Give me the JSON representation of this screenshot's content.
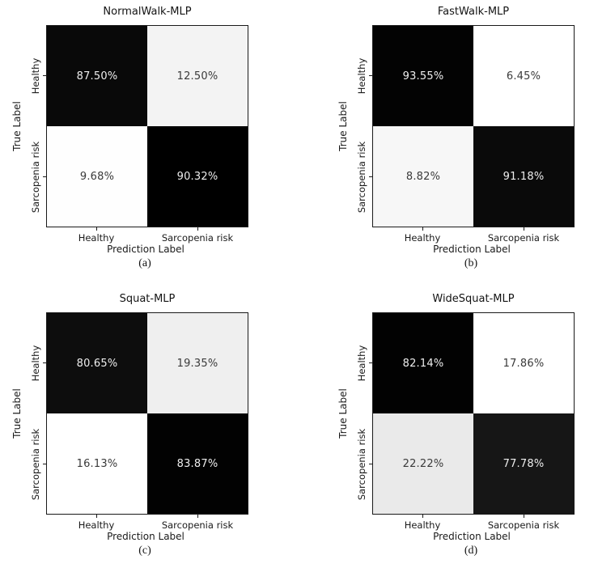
{
  "figure": {
    "background": "#ffffff"
  },
  "panels": [
    {
      "id": "a",
      "title": "NormalWalk-MLP",
      "caption": "(a)",
      "xlabel": "Prediction Label",
      "ylabel": "True Label",
      "x_tick_labels": [
        "Healthy",
        "Sarcopenia risk"
      ],
      "y_tick_labels": [
        "Healthy",
        "Sarcopenia risk"
      ],
      "cells": [
        {
          "true_label": "Healthy",
          "pred_label": "Healthy",
          "value": "87.50%",
          "bg": "#090909",
          "fg": "#eeeeee"
        },
        {
          "true_label": "Healthy",
          "pred_label": "Sarcopenia risk",
          "value": "12.50%",
          "bg": "#f3f3f3",
          "fg": "#3a3a3a"
        },
        {
          "true_label": "Sarcopenia risk",
          "pred_label": "Healthy",
          "value": "9.68%",
          "bg": "#fefefe",
          "fg": "#3a3a3a"
        },
        {
          "true_label": "Sarcopenia risk",
          "pred_label": "Sarcopenia risk",
          "value": "90.32%",
          "bg": "#000000",
          "fg": "#eeeeee"
        }
      ]
    },
    {
      "id": "b",
      "title": "FastWalk-MLP",
      "caption": "(b)",
      "xlabel": "Prediction Label",
      "ylabel": "True Label",
      "x_tick_labels": [
        "Healthy",
        "Sarcopenia risk"
      ],
      "y_tick_labels": [
        "Healthy",
        "Sarcopenia risk"
      ],
      "cells": [
        {
          "true_label": "Healthy",
          "pred_label": "Healthy",
          "value": "93.55%",
          "bg": "#030303",
          "fg": "#eeeeee"
        },
        {
          "true_label": "Healthy",
          "pred_label": "Sarcopenia risk",
          "value": "6.45%",
          "bg": "#ffffff",
          "fg": "#3a3a3a"
        },
        {
          "true_label": "Sarcopenia risk",
          "pred_label": "Healthy",
          "value": "8.82%",
          "bg": "#f7f7f7",
          "fg": "#3a3a3a"
        },
        {
          "true_label": "Sarcopenia risk",
          "pred_label": "Sarcopenia risk",
          "value": "91.18%",
          "bg": "#0a0a0a",
          "fg": "#eeeeee"
        }
      ]
    },
    {
      "id": "c",
      "title": "Squat-MLP",
      "caption": "(c)",
      "xlabel": "Prediction Label",
      "ylabel": "True Label",
      "x_tick_labels": [
        "Healthy",
        "Sarcopenia risk"
      ],
      "y_tick_labels": [
        "Healthy",
        "Sarcopenia risk"
      ],
      "cells": [
        {
          "true_label": "Healthy",
          "pred_label": "Healthy",
          "value": "80.65%",
          "bg": "#0d0d0d",
          "fg": "#eeeeee"
        },
        {
          "true_label": "Healthy",
          "pred_label": "Sarcopenia risk",
          "value": "19.35%",
          "bg": "#efefef",
          "fg": "#3a3a3a"
        },
        {
          "true_label": "Sarcopenia risk",
          "pred_label": "Healthy",
          "value": "16.13%",
          "bg": "#ffffff",
          "fg": "#3a3a3a"
        },
        {
          "true_label": "Sarcopenia risk",
          "pred_label": "Sarcopenia risk",
          "value": "83.87%",
          "bg": "#020202",
          "fg": "#eeeeee"
        }
      ]
    },
    {
      "id": "d",
      "title": "WideSquat-MLP",
      "caption": "(d)",
      "xlabel": "Prediction Label",
      "ylabel": "True Label",
      "x_tick_labels": [
        "Healthy",
        "Sarcopenia risk"
      ],
      "y_tick_labels": [
        "Healthy",
        "Sarcopenia risk"
      ],
      "cells": [
        {
          "true_label": "Healthy",
          "pred_label": "Healthy",
          "value": "82.14%",
          "bg": "#020202",
          "fg": "#eeeeee"
        },
        {
          "true_label": "Healthy",
          "pred_label": "Sarcopenia risk",
          "value": "17.86%",
          "bg": "#ffffff",
          "fg": "#3a3a3a"
        },
        {
          "true_label": "Sarcopenia risk",
          "pred_label": "Healthy",
          "value": "22.22%",
          "bg": "#eaeaea",
          "fg": "#3a3a3a"
        },
        {
          "true_label": "Sarcopenia risk",
          "pred_label": "Sarcopenia risk",
          "value": "77.78%",
          "bg": "#161616",
          "fg": "#eeeeee"
        }
      ]
    }
  ],
  "chart_data": [
    {
      "type": "heatmap",
      "title": "NormalWalk-MLP",
      "caption": "(a)",
      "xlabel": "Prediction Label",
      "ylabel": "True Label",
      "x_categories": [
        "Healthy",
        "Sarcopenia risk"
      ],
      "y_categories": [
        "Healthy",
        "Sarcopenia risk"
      ],
      "values_percent": [
        [
          87.5,
          12.5
        ],
        [
          9.68,
          90.32
        ]
      ],
      "colormap": "Greys: max value = black, min value = white",
      "legend": "none"
    },
    {
      "type": "heatmap",
      "title": "FastWalk-MLP",
      "caption": "(b)",
      "xlabel": "Prediction Label",
      "ylabel": "True Label",
      "x_categories": [
        "Healthy",
        "Sarcopenia risk"
      ],
      "y_categories": [
        "Healthy",
        "Sarcopenia risk"
      ],
      "values_percent": [
        [
          93.55,
          6.45
        ],
        [
          8.82,
          91.18
        ]
      ],
      "colormap": "Greys: max value = black, min value = white",
      "legend": "none"
    },
    {
      "type": "heatmap",
      "title": "Squat-MLP",
      "caption": "(c)",
      "xlabel": "Prediction Label",
      "ylabel": "True Label",
      "x_categories": [
        "Healthy",
        "Sarcopenia risk"
      ],
      "y_categories": [
        "Healthy",
        "Sarcopenia risk"
      ],
      "values_percent": [
        [
          80.65,
          19.35
        ],
        [
          16.13,
          83.87
        ]
      ],
      "colormap": "Greys: max value = black, min value = white",
      "legend": "none"
    },
    {
      "type": "heatmap",
      "title": "WideSquat-MLP",
      "caption": "(d)",
      "xlabel": "Prediction Label",
      "ylabel": "True Label",
      "x_categories": [
        "Healthy",
        "Sarcopenia risk"
      ],
      "y_categories": [
        "Healthy",
        "Sarcopenia risk"
      ],
      "values_percent": [
        [
          82.14,
          17.86
        ],
        [
          22.22,
          77.78
        ]
      ],
      "colormap": "Greys: max value = black, min value = white",
      "legend": "none"
    }
  ]
}
